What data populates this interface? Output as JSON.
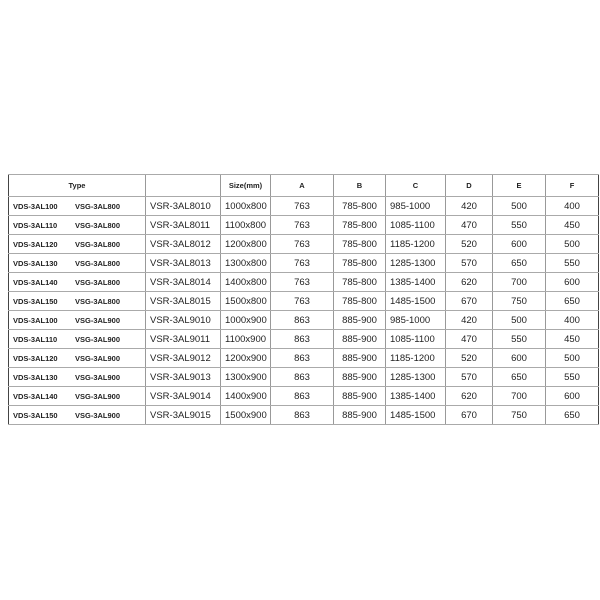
{
  "headers": {
    "type": "Type",
    "model": "",
    "size": "Size(mm)",
    "a": "A",
    "b": "B",
    "c": "C",
    "d": "D",
    "e": "E",
    "f": "F"
  },
  "rows": [
    {
      "t1": "VDS-3AL100",
      "t2": "VSG-3AL800",
      "model": "VSR-3AL8010",
      "size": "1000x800",
      "a": "763",
      "b": "785-800",
      "c": "985-1000",
      "d": "420",
      "e": "500",
      "f": "400"
    },
    {
      "t1": "VDS-3AL110",
      "t2": "VSG-3AL800",
      "model": "VSR-3AL8011",
      "size": "1100x800",
      "a": "763",
      "b": "785-800",
      "c": "1085-1100",
      "d": "470",
      "e": "550",
      "f": "450"
    },
    {
      "t1": "VDS-3AL120",
      "t2": "VSG-3AL800",
      "model": "VSR-3AL8012",
      "size": "1200x800",
      "a": "763",
      "b": "785-800",
      "c": "1185-1200",
      "d": "520",
      "e": "600",
      "f": "500"
    },
    {
      "t1": "VDS-3AL130",
      "t2": "VSG-3AL800",
      "model": "VSR-3AL8013",
      "size": "1300x800",
      "a": "763",
      "b": "785-800",
      "c": "1285-1300",
      "d": "570",
      "e": "650",
      "f": "550"
    },
    {
      "t1": "VDS-3AL140",
      "t2": "VSG-3AL800",
      "model": "VSR-3AL8014",
      "size": "1400x800",
      "a": "763",
      "b": "785-800",
      "c": "1385-1400",
      "d": "620",
      "e": "700",
      "f": "600"
    },
    {
      "t1": "VDS-3AL150",
      "t2": "VSG-3AL800",
      "model": "VSR-3AL8015",
      "size": "1500x800",
      "a": "763",
      "b": "785-800",
      "c": "1485-1500",
      "d": "670",
      "e": "750",
      "f": "650"
    },
    {
      "t1": "VDS-3AL100",
      "t2": "VSG-3AL900",
      "model": "VSR-3AL9010",
      "size": "1000x900",
      "a": "863",
      "b": "885-900",
      "c": "985-1000",
      "d": "420",
      "e": "500",
      "f": "400"
    },
    {
      "t1": "VDS-3AL110",
      "t2": "VSG-3AL900",
      "model": "VSR-3AL9011",
      "size": "1100x900",
      "a": "863",
      "b": "885-900",
      "c": "1085-1100",
      "d": "470",
      "e": "550",
      "f": "450"
    },
    {
      "t1": "VDS-3AL120",
      "t2": "VSG-3AL900",
      "model": "VSR-3AL9012",
      "size": "1200x900",
      "a": "863",
      "b": "885-900",
      "c": "1185-1200",
      "d": "520",
      "e": "600",
      "f": "500"
    },
    {
      "t1": "VDS-3AL130",
      "t2": "VSG-3AL900",
      "model": "VSR-3AL9013",
      "size": "1300x900",
      "a": "863",
      "b": "885-900",
      "c": "1285-1300",
      "d": "570",
      "e": "650",
      "f": "550"
    },
    {
      "t1": "VDS-3AL140",
      "t2": "VSG-3AL900",
      "model": "VSR-3AL9014",
      "size": "1400x900",
      "a": "863",
      "b": "885-900",
      "c": "1385-1400",
      "d": "620",
      "e": "700",
      "f": "600"
    },
    {
      "t1": "VDS-3AL150",
      "t2": "VSG-3AL900",
      "model": "VSR-3AL9015",
      "size": "1500x900",
      "a": "863",
      "b": "885-900",
      "c": "1485-1500",
      "d": "670",
      "e": "750",
      "f": "650"
    }
  ]
}
